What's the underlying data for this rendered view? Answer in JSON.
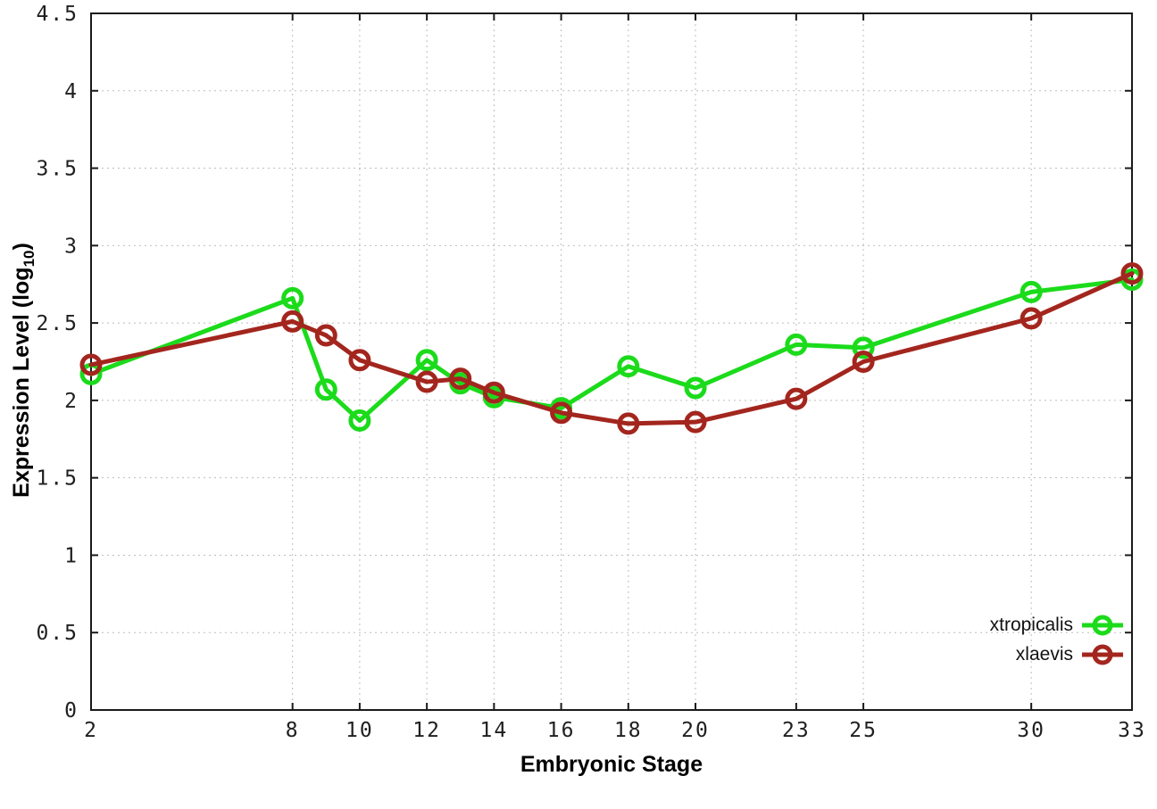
{
  "figure": {
    "background": "#ffffff",
    "border_color": "#1a1a1a",
    "grid_color": "#bdbdbd"
  },
  "labels": {
    "xlabel": "Embryonic Stage",
    "ylabel_main": "Expression Level (log",
    "ylabel_sub": "10",
    "ylabel_end": ")"
  },
  "chart_data": {
    "type": "line",
    "title": "",
    "xlabel": "Embryonic Stage",
    "ylabel": "Expression Level (log10)",
    "xlim": [
      2,
      33
    ],
    "ylim": [
      0,
      4.5
    ],
    "xticks": [
      2,
      8,
      10,
      12,
      14,
      16,
      18,
      20,
      23,
      25,
      30,
      33
    ],
    "yticks": [
      0,
      0.5,
      1,
      1.5,
      2,
      2.5,
      3,
      3.5,
      4,
      4.5
    ],
    "ytick_labels": [
      "0",
      "0.5",
      "1",
      "1.5",
      "2",
      "2.5",
      "3",
      "3.5",
      "4",
      "4.5"
    ],
    "grid": true,
    "legend_position": "bottom-right",
    "marker": "open-circle",
    "x": [
      2,
      8,
      9,
      10,
      12,
      13,
      14,
      16,
      18,
      20,
      23,
      25,
      30,
      33
    ],
    "series": [
      {
        "name": "xtropicalis",
        "color": "#1bdb1b",
        "values": [
          2.17,
          2.66,
          2.07,
          1.87,
          2.26,
          2.11,
          2.02,
          1.95,
          2.22,
          2.08,
          2.36,
          2.34,
          2.7,
          2.78
        ]
      },
      {
        "name": "xlaevis",
        "color": "#a3261e",
        "values": [
          2.23,
          2.51,
          2.42,
          2.26,
          2.12,
          2.14,
          2.05,
          1.92,
          1.85,
          1.86,
          2.01,
          2.25,
          2.53,
          2.82
        ]
      }
    ]
  }
}
